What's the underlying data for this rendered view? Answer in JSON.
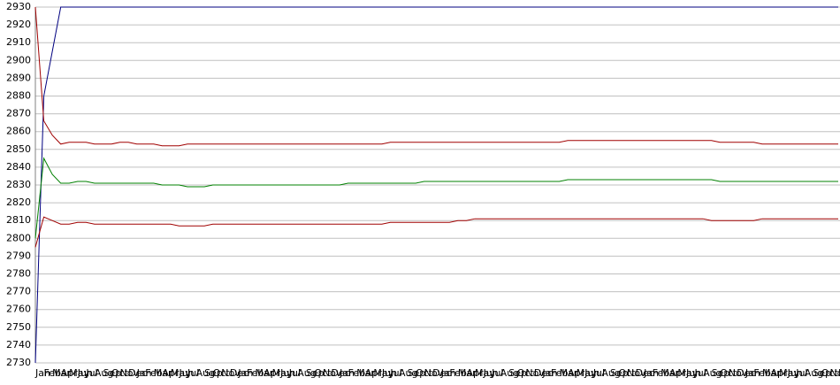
{
  "chart_data": {
    "type": "line",
    "categories": [
      "Jan",
      "Feb",
      "Mar",
      "Apr",
      "May",
      "Jun",
      "Jul",
      "Aug",
      "Sep",
      "Oct",
      "Nov",
      "Dec",
      "Jan",
      "Feb",
      "Mar",
      "Apr",
      "May",
      "Jun",
      "Jul",
      "Aug",
      "Sep",
      "Oct",
      "Nov",
      "Dec",
      "Jan",
      "Feb",
      "Mar",
      "Apr",
      "May",
      "Jun",
      "Jul",
      "Aug",
      "Sep",
      "Oct",
      "Nov",
      "Dec",
      "Jan",
      "Feb",
      "Mar",
      "Apr",
      "May",
      "Jun",
      "Jul",
      "Aug",
      "Sep",
      "Oct",
      "Nov",
      "Dec",
      "Jan",
      "Feb",
      "Mar",
      "Apr",
      "May",
      "Jun",
      "Jul",
      "Aug",
      "Sep",
      "Oct",
      "Nov",
      "Dec",
      "Jan",
      "Feb",
      "Mar",
      "Apr",
      "May",
      "Jun",
      "Jul",
      "Aug",
      "Sep",
      "Oct",
      "Nov",
      "Dec",
      "Jan",
      "Feb",
      "Mar",
      "Apr",
      "May",
      "Jun",
      "Jul",
      "Aug",
      "Sep",
      "Oct",
      "Nov",
      "Dec",
      "Jan",
      "Feb",
      "Mar",
      "Apr",
      "May",
      "Jun",
      "Jul",
      "Aug",
      "Sep",
      "Oct",
      "Nov",
      "Dec"
    ],
    "series": [
      {
        "color": "#000080",
        "values": [
          2730,
          2880,
          2905,
          2930,
          2930,
          2930,
          2930,
          2930,
          2930,
          2930,
          2930,
          2930,
          2930,
          2930,
          2930,
          2930,
          2930,
          2930,
          2930,
          2930,
          2930,
          2930,
          2930,
          2930,
          2930,
          2930,
          2930,
          2930,
          2930,
          2930,
          2930,
          2930,
          2930,
          2930,
          2930,
          2930,
          2930,
          2930,
          2930,
          2930,
          2930,
          2930,
          2930,
          2930,
          2930,
          2930,
          2930,
          2930,
          2930,
          2930,
          2930,
          2930,
          2930,
          2930,
          2930,
          2930,
          2930,
          2930,
          2930,
          2930,
          2930,
          2930,
          2930,
          2930,
          2930,
          2930,
          2930,
          2930,
          2930,
          2930,
          2930,
          2930,
          2930,
          2930,
          2930,
          2930,
          2930,
          2930,
          2930,
          2930,
          2930,
          2930,
          2930,
          2930,
          2930,
          2930,
          2930,
          2930,
          2930,
          2930,
          2930,
          2930,
          2930,
          2930,
          2930,
          2930
        ]
      },
      {
        "color": "#a00000",
        "values": [
          2930,
          2866,
          2858,
          2853,
          2854,
          2854,
          2854,
          2853,
          2853,
          2853,
          2854,
          2854,
          2853,
          2853,
          2853,
          2852,
          2852,
          2852,
          2853,
          2853,
          2853,
          2853,
          2853,
          2853,
          2853,
          2853,
          2853,
          2853,
          2853,
          2853,
          2853,
          2853,
          2853,
          2853,
          2853,
          2853,
          2853,
          2853,
          2853,
          2853,
          2853,
          2853,
          2854,
          2854,
          2854,
          2854,
          2854,
          2854,
          2854,
          2854,
          2854,
          2854,
          2854,
          2854,
          2854,
          2854,
          2854,
          2854,
          2854,
          2854,
          2854,
          2854,
          2854,
          2855,
          2855,
          2855,
          2855,
          2855,
          2855,
          2855,
          2855,
          2855,
          2855,
          2855,
          2855,
          2855,
          2855,
          2855,
          2855,
          2855,
          2855,
          2854,
          2854,
          2854,
          2854,
          2854,
          2853,
          2853,
          2853,
          2853,
          2853,
          2853,
          2853,
          2853,
          2853,
          2853
        ]
      },
      {
        "color": "#008000",
        "values": [
          2800,
          2845,
          2836,
          2831,
          2831,
          2832,
          2832,
          2831,
          2831,
          2831,
          2831,
          2831,
          2831,
          2831,
          2831,
          2830,
          2830,
          2830,
          2829,
          2829,
          2829,
          2830,
          2830,
          2830,
          2830,
          2830,
          2830,
          2830,
          2830,
          2830,
          2830,
          2830,
          2830,
          2830,
          2830,
          2830,
          2830,
          2831,
          2831,
          2831,
          2831,
          2831,
          2831,
          2831,
          2831,
          2831,
          2832,
          2832,
          2832,
          2832,
          2832,
          2832,
          2832,
          2832,
          2832,
          2832,
          2832,
          2832,
          2832,
          2832,
          2832,
          2832,
          2832,
          2833,
          2833,
          2833,
          2833,
          2833,
          2833,
          2833,
          2833,
          2833,
          2833,
          2833,
          2833,
          2833,
          2833,
          2833,
          2833,
          2833,
          2833,
          2832,
          2832,
          2832,
          2832,
          2832,
          2832,
          2832,
          2832,
          2832,
          2832,
          2832,
          2832,
          2832,
          2832,
          2832
        ]
      },
      {
        "color": "#a00000",
        "values": [
          2795,
          2812,
          2810,
          2808,
          2808,
          2809,
          2809,
          2808,
          2808,
          2808,
          2808,
          2808,
          2808,
          2808,
          2808,
          2808,
          2808,
          2807,
          2807,
          2807,
          2807,
          2808,
          2808,
          2808,
          2808,
          2808,
          2808,
          2808,
          2808,
          2808,
          2808,
          2808,
          2808,
          2808,
          2808,
          2808,
          2808,
          2808,
          2808,
          2808,
          2808,
          2808,
          2809,
          2809,
          2809,
          2809,
          2809,
          2809,
          2809,
          2809,
          2810,
          2810,
          2811,
          2811,
          2811,
          2811,
          2811,
          2811,
          2811,
          2811,
          2811,
          2811,
          2811,
          2811,
          2811,
          2811,
          2811,
          2811,
          2811,
          2811,
          2811,
          2811,
          2811,
          2811,
          2811,
          2811,
          2811,
          2811,
          2811,
          2811,
          2810,
          2810,
          2810,
          2810,
          2810,
          2810,
          2811,
          2811,
          2811,
          2811,
          2811,
          2811,
          2811,
          2811,
          2811,
          2811
        ]
      }
    ],
    "ylim": [
      2730,
      2930
    ],
    "yticks": [
      2730,
      2740,
      2750,
      2760,
      2770,
      2780,
      2790,
      2800,
      2810,
      2820,
      2830,
      2840,
      2850,
      2860,
      2870,
      2880,
      2890,
      2900,
      2910,
      2920,
      2930
    ],
    "grid": true
  }
}
